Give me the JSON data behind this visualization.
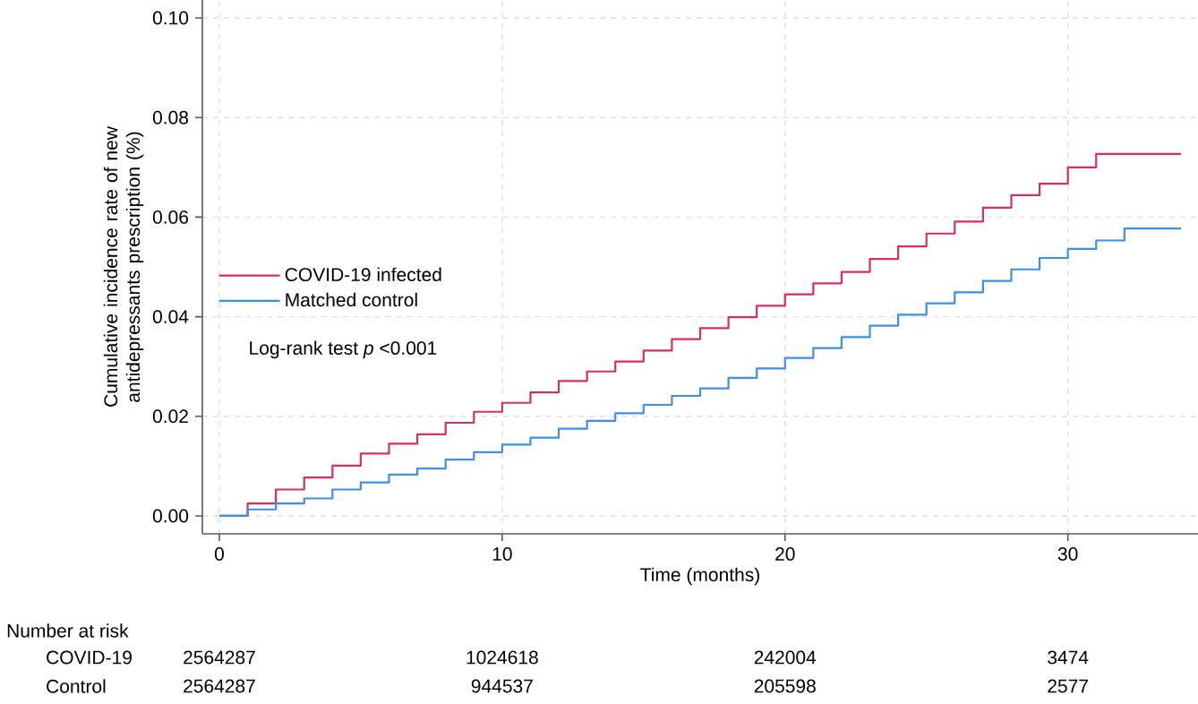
{
  "chart_data": {
    "type": "step",
    "xlabel": "Time (months)",
    "ylabel": "Cumulative incidence rate of new antidepressants prescription (%)",
    "xlim": [
      -0.6,
      34.6
    ],
    "ylim": [
      -0.0036,
      0.1036
    ],
    "xticks": [
      0,
      10,
      20,
      30
    ],
    "yticks": [
      {
        "value": 0,
        "label": "0.00"
      },
      {
        "value": 0.02,
        "label": "0.02"
      },
      {
        "value": 0.04,
        "label": "0.04"
      },
      {
        "value": 0.06,
        "label": "0.06"
      },
      {
        "value": 0.08,
        "label": "0.08"
      },
      {
        "value": 0.1,
        "label": "0.10"
      }
    ],
    "grid": true,
    "legend": "left",
    "series": [
      {
        "name": "COVID-19 infected",
        "color": "#d62f61",
        "x": [
          0,
          1,
          2,
          3,
          4,
          5,
          6,
          7,
          8,
          9,
          10,
          11,
          12,
          13,
          14,
          15,
          16,
          17,
          18,
          19,
          20,
          21,
          22,
          23,
          24,
          25,
          26,
          27,
          28,
          29,
          30,
          31,
          34
        ],
        "values": [
          0,
          0.0025,
          0.0053,
          0.0077,
          0.0101,
          0.0125,
          0.0145,
          0.0164,
          0.0187,
          0.0209,
          0.0227,
          0.0248,
          0.0271,
          0.029,
          0.031,
          0.0332,
          0.0355,
          0.0377,
          0.0399,
          0.0422,
          0.0445,
          0.0467,
          0.049,
          0.0516,
          0.0541,
          0.0567,
          0.0591,
          0.0619,
          0.0644,
          0.0667,
          0.07,
          0.0727,
          0.0727
        ]
      },
      {
        "name": "Matched control",
        "color": "#3d8fe8",
        "x": [
          0,
          1,
          2,
          3,
          4,
          5,
          6,
          7,
          8,
          9,
          10,
          11,
          12,
          13,
          14,
          15,
          16,
          17,
          18,
          19,
          20,
          21,
          22,
          23,
          24,
          25,
          26,
          27,
          28,
          29,
          30,
          31,
          32,
          34
        ],
        "values": [
          0,
          0.0013,
          0.0025,
          0.0035,
          0.0053,
          0.0067,
          0.0083,
          0.0095,
          0.0113,
          0.0128,
          0.0143,
          0.0157,
          0.0175,
          0.0191,
          0.0206,
          0.0223,
          0.0241,
          0.0256,
          0.0277,
          0.0296,
          0.0317,
          0.0337,
          0.0359,
          0.0382,
          0.0404,
          0.0427,
          0.0449,
          0.0472,
          0.0495,
          0.0518,
          0.0536,
          0.0553,
          0.0577,
          0.0577
        ]
      }
    ],
    "annotations": [
      "Log-rank test *p* <0.001",
      "Number at risk",
      "COVID-19",
      "2564287",
      "1024618",
      "242004",
      "3474",
      "Control",
      "2564287",
      "944537",
      "205598",
      "2577"
    ]
  }
}
